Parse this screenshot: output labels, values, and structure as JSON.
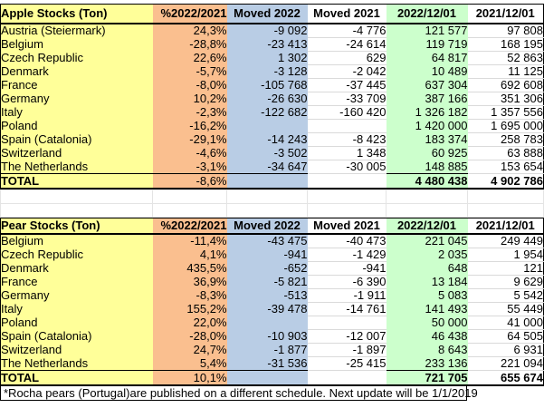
{
  "colors": {
    "label_column": "#FFFF99",
    "percent_column": "#FABF8F",
    "moved_2022_column": "#B9CDE5",
    "stock_2022_column": "#CCFFCC",
    "gridline": "#DADADA",
    "border": "#000000"
  },
  "tables": [
    {
      "title": "Apple Stocks (Ton)",
      "columns": [
        "%2022/2021",
        "Moved 2022",
        "Moved 2021",
        "2022/12/01",
        "2021/12/01"
      ],
      "rows": [
        {
          "label": "Austria (Steiermark)",
          "values": [
            "24,3%",
            "-9 092",
            "-4 776",
            "121 577",
            "97 808"
          ]
        },
        {
          "label": "Belgium",
          "values": [
            "-28,8%",
            "-23 413",
            "-24 614",
            "119 719",
            "168 195"
          ]
        },
        {
          "label": "Czech Republic",
          "values": [
            "22,6%",
            "1 302",
            "629",
            "64 817",
            "52 863"
          ]
        },
        {
          "label": "Denmark",
          "values": [
            "-5,7%",
            "-3 128",
            "-2 042",
            "10 489",
            "11 125"
          ]
        },
        {
          "label": "France",
          "values": [
            "-8,0%",
            "-105 768",
            "-37 445",
            "637 304",
            "692 608"
          ]
        },
        {
          "label": "Germany",
          "values": [
            "10,2%",
            "-26 630",
            "-33 709",
            "387 166",
            "351 306"
          ]
        },
        {
          "label": "Italy",
          "values": [
            "-2,3%",
            "-122 682",
            "-160 420",
            "1 326 182",
            "1 357 556"
          ]
        },
        {
          "label": "Poland",
          "values": [
            "-16,2%",
            "",
            "",
            "1 420 000",
            "1 695 000"
          ]
        },
        {
          "label": "Spain (Catalonia)",
          "values": [
            "-29,1%",
            "-14 243",
            "-8 423",
            "183 374",
            "258 783"
          ]
        },
        {
          "label": "Switzerland",
          "values": [
            "-4,6%",
            "-3 502",
            "1 348",
            "60 925",
            "63 888"
          ]
        },
        {
          "label": "The Netherlands",
          "values": [
            "-3,1%",
            "-34 647",
            "-30 005",
            "148 885",
            "153 654"
          ]
        }
      ],
      "total": {
        "label": "TOTAL",
        "values": [
          "-8,6%",
          "",
          "",
          "4 480 438",
          "4 902 786"
        ]
      }
    },
    {
      "title": "Pear Stocks (Ton)",
      "columns": [
        "%2022/2021",
        "Moved 2022",
        "Moved 2021",
        "2022/12/01",
        "2021/12/01"
      ],
      "rows": [
        {
          "label": "Belgium",
          "values": [
            "-11,4%",
            "-43 475",
            "-40 473",
            "221 045",
            "249 449"
          ]
        },
        {
          "label": "Czech Republic",
          "values": [
            "4,1%",
            "-941",
            "-1 429",
            "2 035",
            "1 954"
          ]
        },
        {
          "label": "Denmark",
          "values": [
            "435,5%",
            "-652",
            "-941",
            "648",
            "121"
          ]
        },
        {
          "label": "France",
          "values": [
            "36,9%",
            "-5 821",
            "-6 390",
            "13 184",
            "9 629"
          ]
        },
        {
          "label": "Germany",
          "values": [
            "-8,3%",
            "-513",
            "-1 911",
            "5 083",
            "5 542"
          ]
        },
        {
          "label": "Italy",
          "values": [
            "155,2%",
            "-39 478",
            "-14 761",
            "141 493",
            "55 449"
          ]
        },
        {
          "label": "Poland",
          "values": [
            "22,0%",
            "",
            "",
            "50 000",
            "41 000"
          ]
        },
        {
          "label": "Spain (Catalonia)",
          "values": [
            "-28,0%",
            "-10 903",
            "-12 007",
            "46 438",
            "64 505"
          ]
        },
        {
          "label": "Switzerland",
          "values": [
            "24,7%",
            "-1 877",
            "-1 897",
            "8 643",
            "6 931"
          ]
        },
        {
          "label": "The Netherlands",
          "values": [
            "5,4%",
            "-31 536",
            "-25 415",
            "233 136",
            "221 094"
          ]
        }
      ],
      "total": {
        "label": "TOTAL",
        "values": [
          "10,1%",
          "",
          "",
          "721 705",
          "655 674"
        ]
      }
    }
  ],
  "footnote": "*Rocha pears (Portugal)are published on a different schedule. Next update will be 1/1/2019"
}
